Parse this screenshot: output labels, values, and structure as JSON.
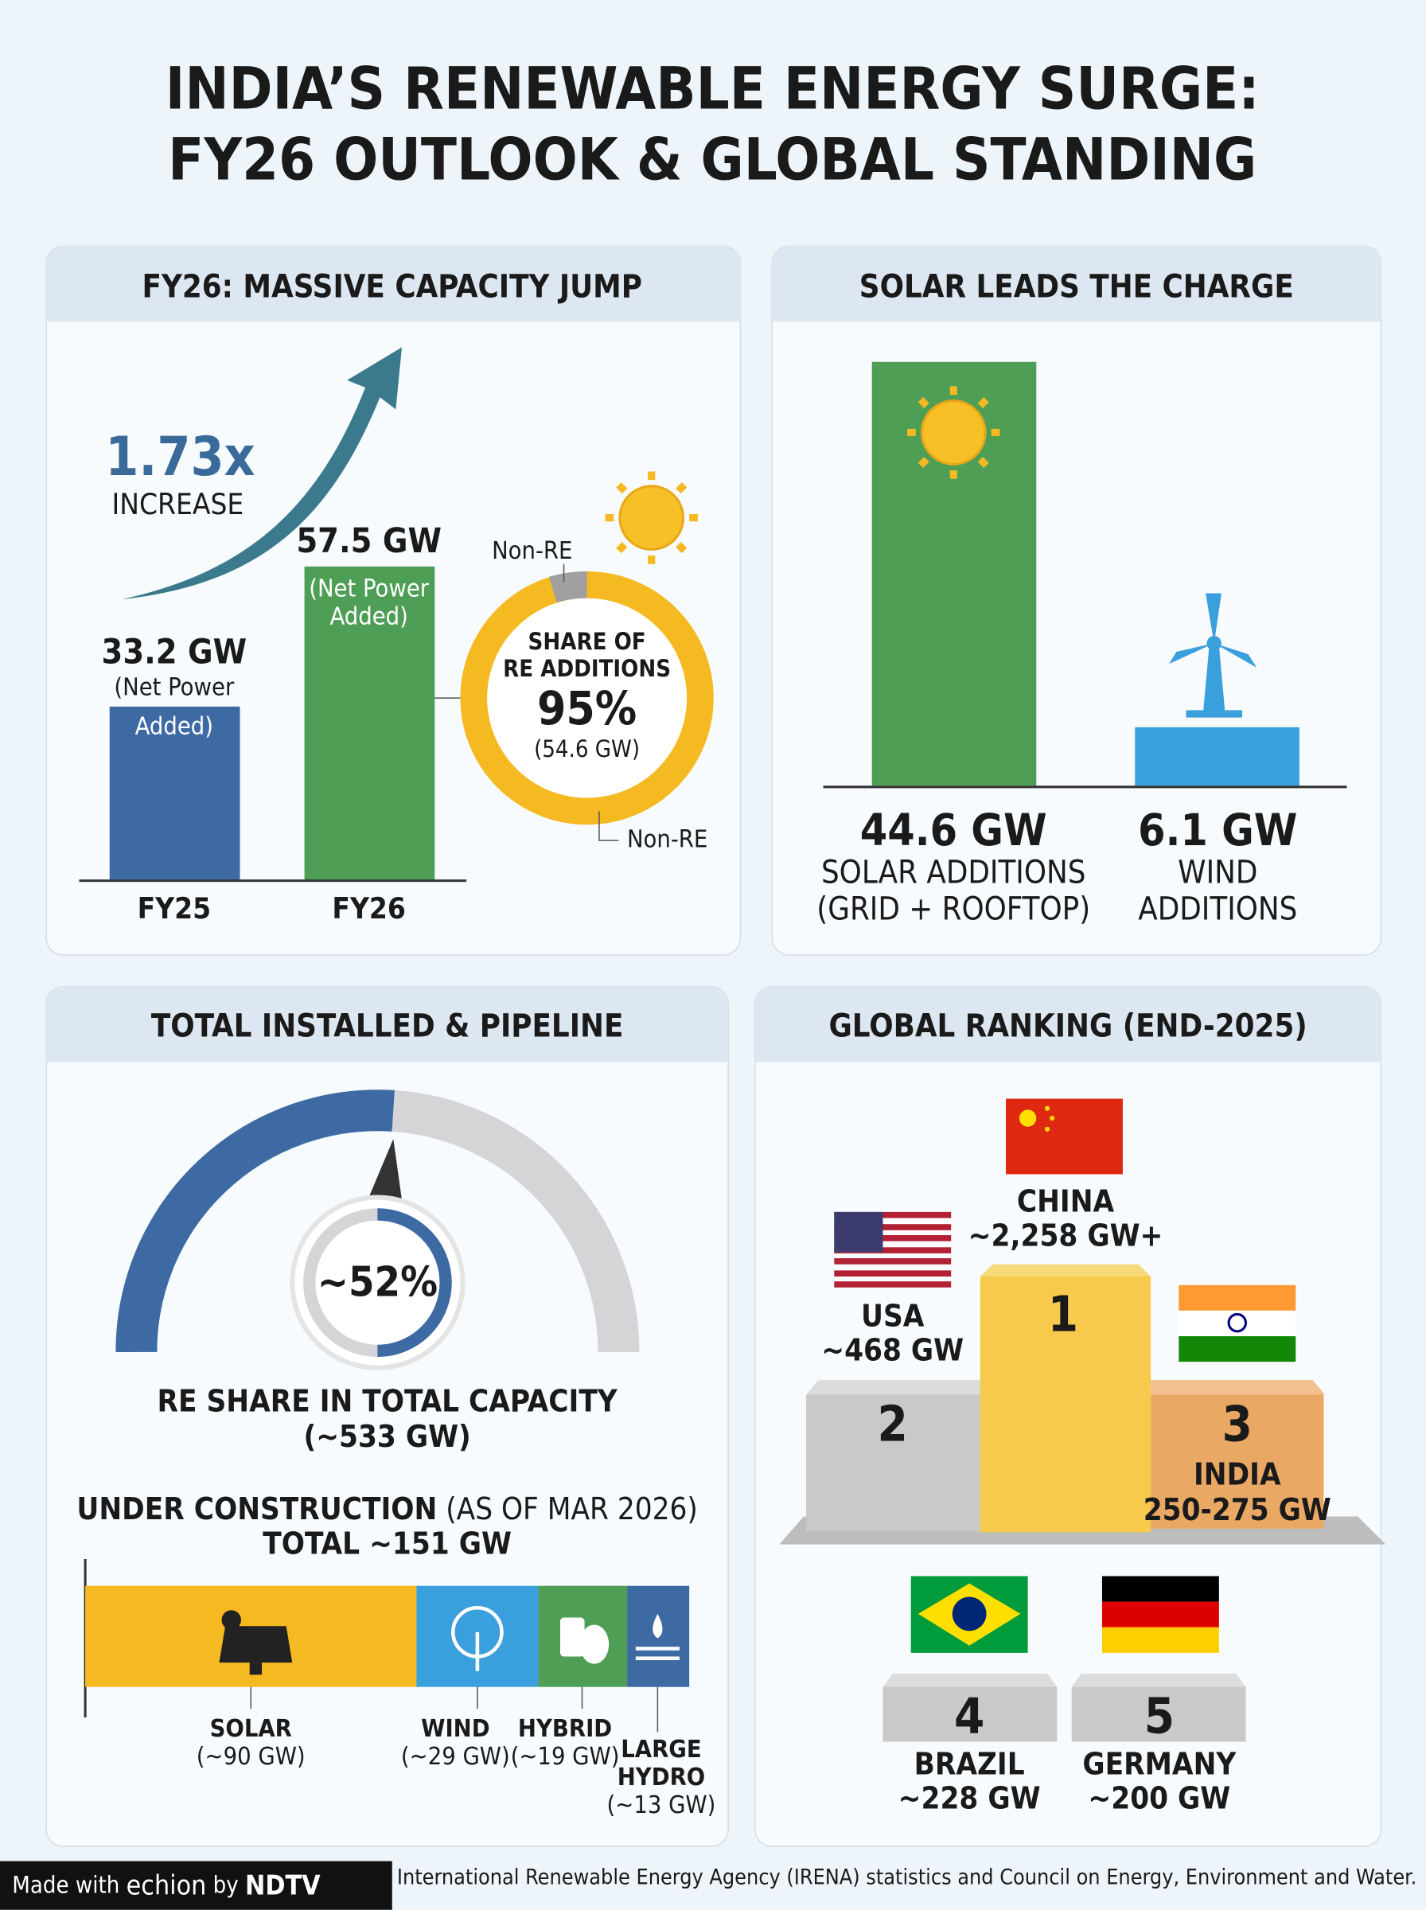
{
  "title": {
    "line1": "INDIA’S RENEWABLE ENERGY SURGE:",
    "line2": "FY26 OUTLOOK & GLOBAL STANDING"
  },
  "capacity": {
    "heading": "FY26: MASSIVE CAPACITY JUMP",
    "multiplier": "1.73x",
    "multiplier_label": "INCREASE",
    "bars": [
      {
        "value": "33.2 GW",
        "note1": "(Net Power",
        "note2": "Added)",
        "category": "FY25"
      },
      {
        "value": "57.5 GW",
        "note1": "(Net Power",
        "note2": "Added)",
        "category": "FY26"
      }
    ],
    "donut": {
      "label1": "SHARE OF",
      "label2": "RE ADDITIONS",
      "value": "95%",
      "sub": "(54.6 GW)",
      "nonre_top": "Non-RE",
      "nonre_bottom": "Non-RE"
    }
  },
  "solar": {
    "heading": "SOLAR LEADS THE CHARGE",
    "items": [
      {
        "value": "44.6 GW",
        "label1": "SOLAR ADDITIONS",
        "label2": "(GRID + ROOFTOP)"
      },
      {
        "value": "6.1 GW",
        "label1": "WIND",
        "label2": "ADDITIONS"
      }
    ]
  },
  "pipeline": {
    "heading": "TOTAL INSTALLED & PIPELINE",
    "gauge_value": "~52%",
    "caption1": "RE SHARE IN TOTAL CAPACITY",
    "caption2": "(~533 GW)",
    "uc_title": "UNDER CONSTRUCTION",
    "uc_date": "(AS OF MAR 2026)",
    "uc_total": "TOTAL ~151 GW",
    "segments": [
      {
        "name": "SOLAR",
        "value": "(~90 GW)"
      },
      {
        "name": "WIND",
        "value": "(~29 GW)"
      },
      {
        "name": "HYBRID",
        "value": "(~19 GW)"
      },
      {
        "name1": "LARGE",
        "name2": "HYDRO",
        "value": "(~13 GW)"
      }
    ]
  },
  "ranking": {
    "heading": "GLOBAL RANKING (END-2025)",
    "entries": [
      {
        "rank": "1",
        "country": "CHINA",
        "value": "~2,258 GW+"
      },
      {
        "rank": "2",
        "country": "USA",
        "value": "~468 GW"
      },
      {
        "rank": "3",
        "country": "INDIA",
        "value": "250-275 GW"
      },
      {
        "rank": "4",
        "country": "BRAZIL",
        "value": "~228 GW"
      },
      {
        "rank": "5",
        "country": "GERMANY",
        "value": "~200 GW"
      }
    ]
  },
  "footer": {
    "made_with": "Made with",
    "brand": "echion",
    "by": "by",
    "ndtv": "NDTV",
    "source": "International Renewable Energy Agency (IRENA) statistics and Council on Energy, Environment and Water."
  }
}
